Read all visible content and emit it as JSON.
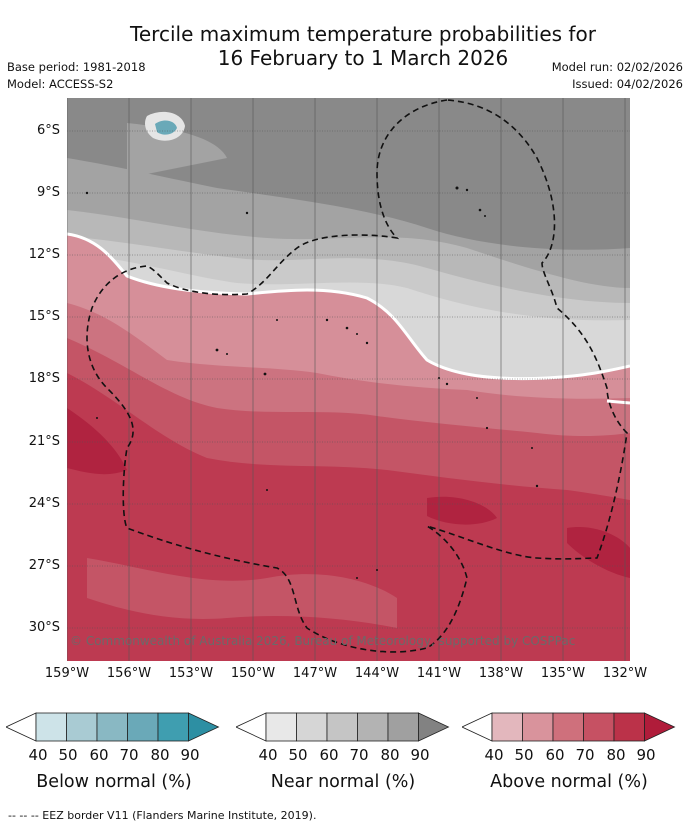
{
  "title": {
    "line1": "Tercile maximum temperature probabilities for",
    "line2": "16 February to 1 March 2026"
  },
  "meta": {
    "base_period": "Base period: 1981-2018",
    "model": "Model: ACCESS-S2",
    "model_run": "Model run: 02/02/2026",
    "issued": "Issued: 04/02/2026"
  },
  "lat_labels": [
    "6°S",
    "9°S",
    "12°S",
    "15°S",
    "18°S",
    "21°S",
    "24°S",
    "27°S",
    "30°S"
  ],
  "lon_labels": [
    "159°W",
    "156°W",
    "153°W",
    "150°W",
    "147°W",
    "144°W",
    "141°W",
    "138°W",
    "135°W",
    "132°W"
  ],
  "copyright": "© Commonwealth of Australia 2026, Bureau of Meteorology, supported by COSPPac",
  "legend": {
    "ticks": [
      "40",
      "50",
      "60",
      "70",
      "80",
      "90"
    ],
    "below": {
      "title": "Below normal (%)",
      "colors": [
        "#ffffff",
        "#cde3e8",
        "#a9cbd3",
        "#89b8c3",
        "#6aa9b8",
        "#3f9eb0",
        "#2d8fa3"
      ]
    },
    "near": {
      "title": "Near normal (%)",
      "colors": [
        "#ffffff",
        "#e8e8e8",
        "#d6d6d6",
        "#c5c5c5",
        "#b3b3b3",
        "#a0a0a0",
        "#828282"
      ]
    },
    "above": {
      "title": "Above normal (%)",
      "colors": [
        "#ffffff",
        "#e3b7bd",
        "#d9939c",
        "#cf707c",
        "#c65163",
        "#bb3249",
        "#b01c3a"
      ]
    }
  },
  "footnote": "--  --  -- EEZ border V11 (Flanders Marine Institute, 2019)."
}
